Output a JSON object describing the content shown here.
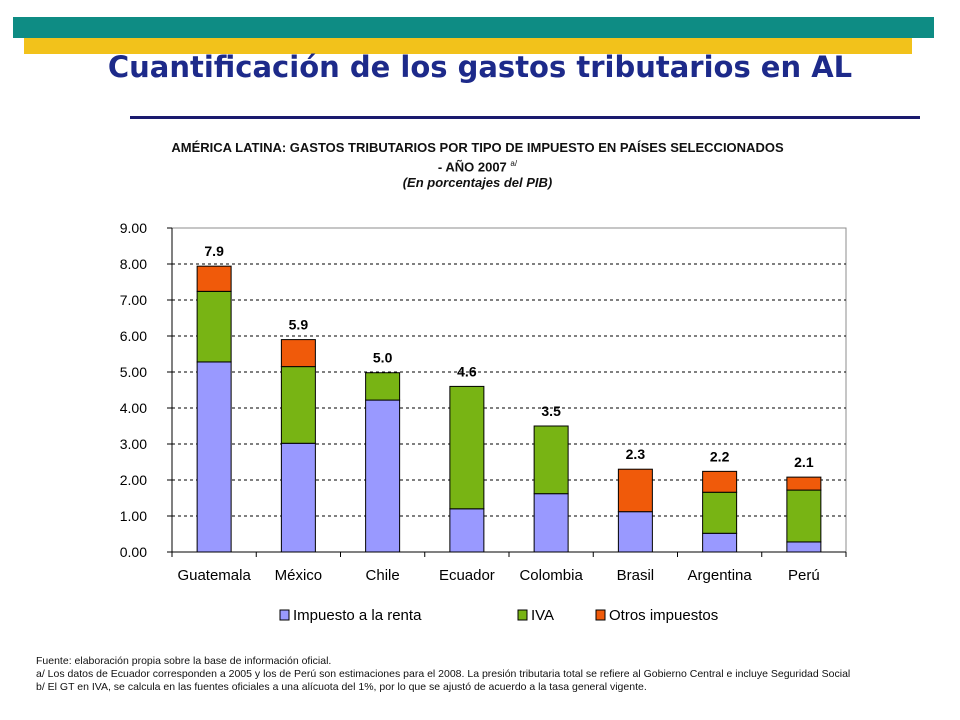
{
  "slide": {
    "title": "Cuantificación de los gastos tributarios en AL",
    "header_colors": {
      "teal": "#0e8c84",
      "yellow": "#f2c21b",
      "rule": "#1a1a6e"
    }
  },
  "chart_heading": {
    "line1": "AMÉRICA LATINA: GASTOS TRIBUTARIOS POR TIPO DE IMPUESTO EN PAÍSES SELECCIONADOS",
    "line2": "- AÑO 2007",
    "line2_sup": "a/",
    "line3": "(En porcentajes del PIB)"
  },
  "chart_data": {
    "type": "bar",
    "stacked": true,
    "categories": [
      "Guatemala",
      "México",
      "Chile",
      "Ecuador",
      "Colombia",
      "Brasil",
      "Argentina",
      "Perú"
    ],
    "series": [
      {
        "name": "Impuesto a la renta",
        "color": "#9999ff",
        "values": [
          5.28,
          3.02,
          4.22,
          1.2,
          1.62,
          1.12,
          0.52,
          0.28
        ]
      },
      {
        "name": "IVA",
        "color": "#78b414",
        "values": [
          1.96,
          2.13,
          0.76,
          3.4,
          1.88,
          0.0,
          1.14,
          1.44
        ]
      },
      {
        "name": "Otros impuestos",
        "color": "#f05a0a",
        "values": [
          0.7,
          0.75,
          0.0,
          0.0,
          0.0,
          1.18,
          0.58,
          0.36
        ]
      }
    ],
    "totals": [
      "7.9",
      "5.9",
      "5.0",
      "4.6",
      "3.5",
      "2.3",
      "2.2",
      "2.1"
    ],
    "yticks": [
      "0.00",
      "1.00",
      "2.00",
      "3.00",
      "4.00",
      "5.00",
      "6.00",
      "7.00",
      "8.00",
      "9.00"
    ],
    "ylim": [
      0,
      9
    ],
    "grid": true,
    "legend_position": "bottom",
    "title": "",
    "xlabel": "",
    "ylabel": ""
  },
  "footnotes": [
    "Fuente: elaboración propia sobre la base de información oficial.",
    "a/ Los datos de Ecuador corresponden a 2005 y los de Perú son estimaciones para el 2008. La presión tributaria total se refiere al Gobierno Central e incluye Seguridad Social",
    "b/ El GT en IVA, se calcula en las fuentes oficiales a una alícuota del 1%, por lo que se ajustó de acuerdo a la tasa general vigente."
  ]
}
